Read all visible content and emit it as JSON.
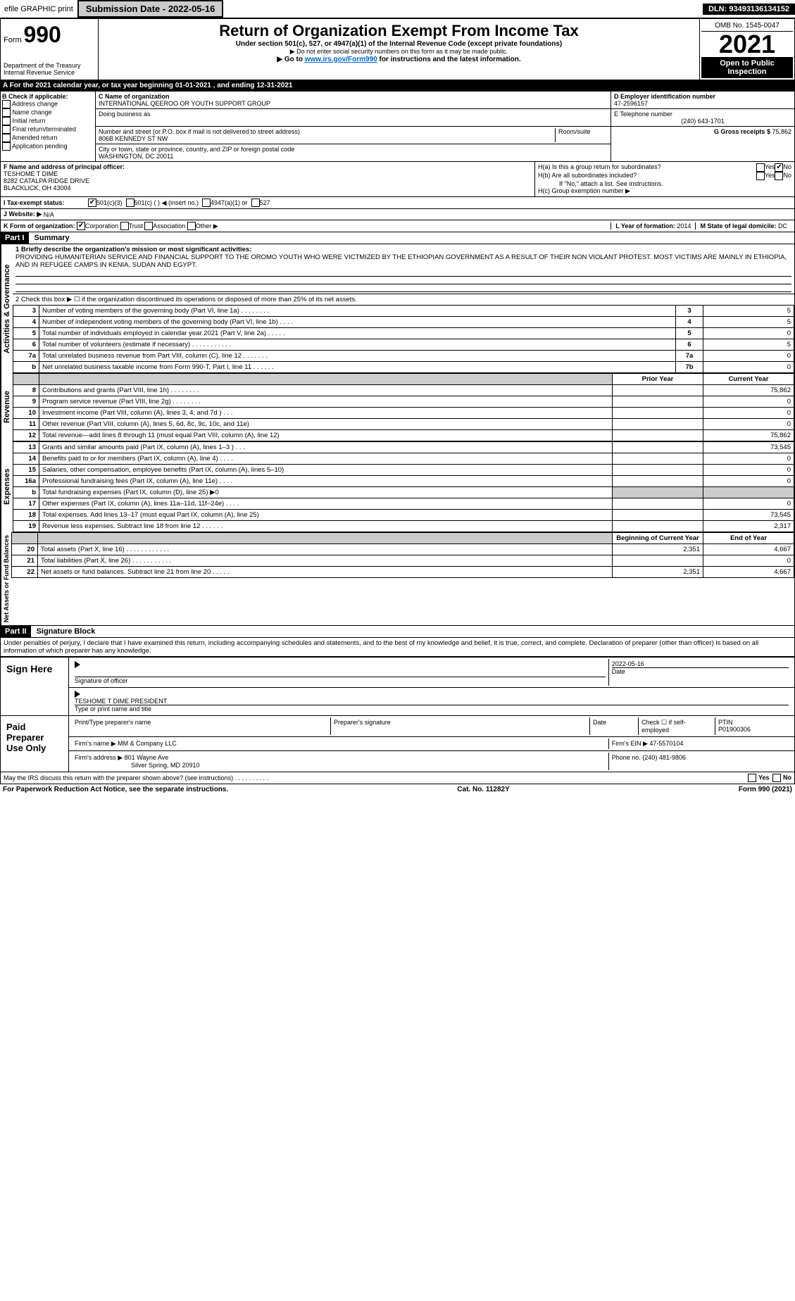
{
  "top": {
    "efile": "efile GRAPHIC print",
    "submission": "Submission Date - 2022-05-16",
    "dln": "DLN: 93493136134152"
  },
  "header": {
    "formLabel": "Form",
    "formNum": "990",
    "title": "Return of Organization Exempt From Income Tax",
    "sub1": "Under section 501(c), 527, or 4947(a)(1) of the Internal Revenue Code (except private foundations)",
    "sub2": "▶ Do not enter social security numbers on this form as it may be made public.",
    "sub3": "▶ Go to ",
    "link": "www.irs.gov/Form990",
    "sub3b": " for instructions and the latest information.",
    "dept": "Department of the Treasury",
    "irs": "Internal Revenue Service",
    "omb": "OMB No. 1545-0047",
    "year": "2021",
    "open": "Open to Public Inspection"
  },
  "period": "A For the 2021 calendar year, or tax year beginning 01-01-2021    , and ending 12-31-2021",
  "boxB": {
    "label": "B Check if applicable:",
    "opts": [
      "Address change",
      "Name change",
      "Initial return",
      "Final return/terminated",
      "Amended return",
      "Application pending"
    ]
  },
  "boxC": {
    "nameLabel": "C Name of organization",
    "name": "INTERNATIONAL QEEROO OR YOUTH SUPPORT GROUP",
    "dbaLabel": "Doing business as",
    "streetLabel": "Number and street (or P.O. box if mail is not delivered to street address)",
    "roomLabel": "Room/suite",
    "street": "806B KENNEDY ST NW",
    "cityLabel": "City or town, state or province, country, and ZIP or foreign postal code",
    "city": "WASHINGTON, DC  20011"
  },
  "boxD": {
    "label": "D Employer identification number",
    "ein": "47-2596157"
  },
  "boxE": {
    "label": "E Telephone number",
    "phone": "(240) 643-1701"
  },
  "boxG": {
    "label": "G Gross receipts $",
    "amount": "75,862"
  },
  "boxF": {
    "label": "F Name and address of principal officer:",
    "name": "TESHOME T DIME",
    "addr1": "8282 CATALPA RIDGE DRIVE",
    "addr2": "BLACKLICK, OH  43004"
  },
  "boxH": {
    "ha": "H(a)  Is this a group return for subordinates?",
    "hb": "H(b)  Are all subordinates included?",
    "hbNote": "If \"No,\" attach a list. See instructions.",
    "hc": "H(c)  Group exemption number ▶"
  },
  "boxI": {
    "label": "I  Tax-exempt status:",
    "o1": "501(c)(3)",
    "o2": "501(c) (   ) ◀ (insert no.)",
    "o3": "4947(a)(1) or",
    "o4": "527"
  },
  "boxJ": {
    "label": "J  Website: ▶",
    "val": "N/A"
  },
  "boxK": {
    "label": "K Form of organization:",
    "corp": "Corporation",
    "trust": "Trust",
    "assoc": "Association",
    "other": "Other ▶"
  },
  "boxL": {
    "label": "L Year of formation:",
    "val": "2014"
  },
  "boxM": {
    "label": "M State of legal domicile:",
    "val": "DC"
  },
  "partI": {
    "header": "Part I",
    "title": "Summary",
    "vert_ag": "Activities & Governance",
    "vert_rev": "Revenue",
    "vert_exp": "Expenses",
    "vert_na": "Net Assets or Fund Balances",
    "line1": "1 Briefly describe the organization's mission or most significant activities:",
    "mission": "PROVIDING HUMANITERIAN SERVICE AND FINANCIAL SUPPORT TO THE OROMO YOUTH WHO WERE VICTMIZED BY THE ETHIOPIAN GOVERNMENT AS A RESULT OF THEIR NON VIOLANT PROTEST. MOST VICTIMS ARE MAINLY IN ETHIOPIA, AND IN REFUGEE CAMPS IN KENIA, SUDAN AND EGYPT.",
    "line2": "2  Check this box ▶ ☐  if the organization discontinued its operations or disposed of more than 25% of its net assets.",
    "rows_ag": [
      {
        "n": "3",
        "t": "Number of voting members of the governing body (Part VI, line 1a)  .    .    .    .    .    .    .    .",
        "c": "3",
        "v": "5"
      },
      {
        "n": "4",
        "t": "Number of independent voting members of the governing body (Part VI, line 1b)   .    .    .    .",
        "c": "4",
        "v": "5"
      },
      {
        "n": "5",
        "t": "Total number of individuals employed in calendar year 2021 (Part V, line 2a)   .    .    .    .    .",
        "c": "5",
        "v": "0"
      },
      {
        "n": "6",
        "t": "Total number of volunteers (estimate if necessary)    .    .    .    .    .    .    .    .    .    .    .",
        "c": "6",
        "v": "5"
      },
      {
        "n": "7a",
        "t": "Total unrelated business revenue from Part VIII, column (C), line 12   .    .    .    .    .    .    .",
        "c": "7a",
        "v": "0"
      },
      {
        "n": "b",
        "t": "Net unrelated business taxable income from Form 990-T, Part I, line 11   .    .    .    .    .    .",
        "c": "7b",
        "v": "0"
      }
    ],
    "col_py": "Prior Year",
    "col_cy": "Current Year",
    "rows_rev": [
      {
        "n": "8",
        "t": "Contributions and grants (Part VIII, line 1h)   .    .    .    .    .    .    .    .",
        "py": "",
        "cy": "75,862"
      },
      {
        "n": "9",
        "t": "Program service revenue (Part VIII, line 2g)   .    .    .    .    .    .    .    .",
        "py": "",
        "cy": "0"
      },
      {
        "n": "10",
        "t": "Investment income (Part VIII, column (A), lines 3, 4, and 7d )   .    .    .",
        "py": "",
        "cy": "0"
      },
      {
        "n": "11",
        "t": "Other revenue (Part VIII, column (A), lines 5, 6d, 8c, 9c, 10c, and 11e)",
        "py": "",
        "cy": "0"
      },
      {
        "n": "12",
        "t": "Total revenue—add lines 8 through 11 (must equal Part VIII, column (A), line 12)",
        "py": "",
        "cy": "75,862"
      }
    ],
    "rows_exp": [
      {
        "n": "13",
        "t": "Grants and similar amounts paid (Part IX, column (A), lines 1–3 )   .    .    .",
        "py": "",
        "cy": "73,545"
      },
      {
        "n": "14",
        "t": "Benefits paid to or for members (Part IX, column (A), line 4)   .    .    .    .",
        "py": "",
        "cy": "0"
      },
      {
        "n": "15",
        "t": "Salaries, other compensation, employee benefits (Part IX, column (A), lines 5–10)",
        "py": "",
        "cy": "0"
      },
      {
        "n": "16a",
        "t": "Professional fundraising fees (Part IX, column (A), line 11e)   .    .    .    .",
        "py": "",
        "cy": "0"
      },
      {
        "n": "b",
        "t": "Total fundraising expenses (Part IX, column (D), line 25) ▶0",
        "py": "shaded",
        "cy": "shaded"
      },
      {
        "n": "17",
        "t": "Other expenses (Part IX, column (A), lines 11a–11d, 11f–24e)   .    .    .    .",
        "py": "",
        "cy": "0"
      },
      {
        "n": "18",
        "t": "Total expenses. Add lines 13–17 (must equal Part IX, column (A), line 25)",
        "py": "",
        "cy": "73,545"
      },
      {
        "n": "19",
        "t": "Revenue less expenses. Subtract line 18 from line 12   .    .    .    .    .    .",
        "py": "",
        "cy": "2,317"
      }
    ],
    "col_boy": "Beginning of Current Year",
    "col_eoy": "End of Year",
    "rows_na": [
      {
        "n": "20",
        "t": "Total assets (Part X, line 16)   .    .    .    .    .    .    .    .    .    .    .    .",
        "py": "2,351",
        "cy": "4,667"
      },
      {
        "n": "21",
        "t": "Total liabilities (Part X, line 26)   .    .    .    .    .    .    .    .    .    .    .",
        "py": "",
        "cy": "0"
      },
      {
        "n": "22",
        "t": "Net assets or fund balances. Subtract line 21 from line 20   .    .    .    .    .",
        "py": "2,351",
        "cy": "4,667"
      }
    ]
  },
  "partII": {
    "header": "Part II",
    "title": "Signature Block",
    "declaration": "Under penalties of perjury, I declare that I have examined this return, including accompanying schedules and statements, and to the best of my knowledge and belief, it is true, correct, and complete. Declaration of preparer (other than officer) is based on all information of which preparer has any knowledge.",
    "signHere": "Sign Here",
    "sigOfficer": "Signature of officer",
    "sigDate": "2022-05-16",
    "dateLabel": "Date",
    "officerName": "TESHOME T DIME  PRESIDENT",
    "typeLabel": "Type or print name and title",
    "paidPrep": "Paid Preparer Use Only",
    "prepName": "Print/Type preparer's name",
    "prepSig": "Preparer's signature",
    "checkIf": "Check ☐ if self-employed",
    "ptinLabel": "PTIN",
    "ptin": "P01900306",
    "firmName": "Firm's name    ▶",
    "firm": "MM & Company LLC",
    "firmEinLabel": "Firm's EIN ▶",
    "firmEin": "47-5570104",
    "firmAddrLabel": "Firm's address ▶",
    "firmAddr1": "801 Wayne Ave",
    "firmAddr2": "Silver Spring, MD  20910",
    "phoneLabel": "Phone no.",
    "phone": "(240) 481-9806",
    "discuss": "May the IRS discuss this return with the preparer shown above? (see instructions)   .    .    .    .    .    .    .    .    .    .",
    "yes": "Yes",
    "no": "No"
  },
  "footer": {
    "pra": "For Paperwork Reduction Act Notice, see the separate instructions.",
    "cat": "Cat. No. 11282Y",
    "form": "Form 990 (2021)"
  }
}
